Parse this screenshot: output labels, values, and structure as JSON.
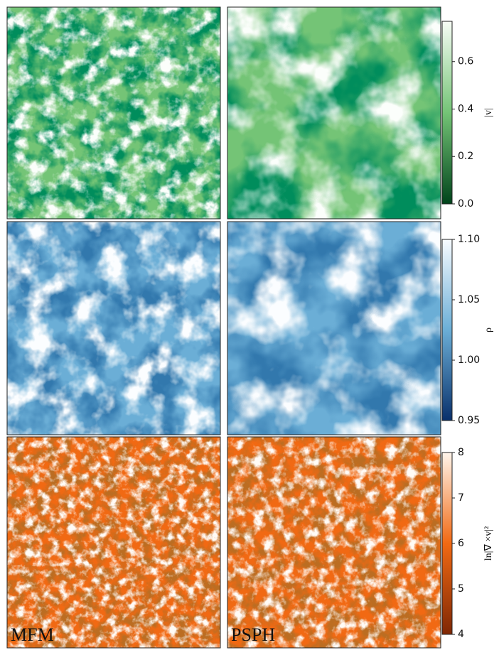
{
  "chart_data": [
    {
      "type": "image",
      "colorbar_label": "|v|",
      "colors": [
        "#00441b",
        "#74c476",
        "#f7fcf5"
      ],
      "zlim": [
        0,
        0.77
      ],
      "zticks": [
        {
          "value": 0,
          "label": "0.0"
        },
        0.2,
        0.4,
        0.6
      ]
    },
    {
      "type": "image",
      "colorbar_label": "ρ",
      "colors": [
        "#08306b",
        "#6baed6",
        "#f7fbff"
      ],
      "zlim": [
        0.95,
        1.1
      ],
      "zticks": [
        0.95,
        {
          "value": 1,
          "label": "1.00"
        },
        1.05,
        {
          "value": 1.1,
          "label": "1.10"
        }
      ]
    },
    {
      "type": "image",
      "colorbar_label": "ln|∇ ×v|²",
      "colors": [
        "#7f2704",
        "#f16913",
        "#fff5eb"
      ],
      "zlim": [
        4,
        8
      ],
      "zticks": [
        4,
        5,
        6,
        7,
        8
      ],
      "annotations": [
        "MFM",
        "PSPH"
      ]
    }
  ]
}
